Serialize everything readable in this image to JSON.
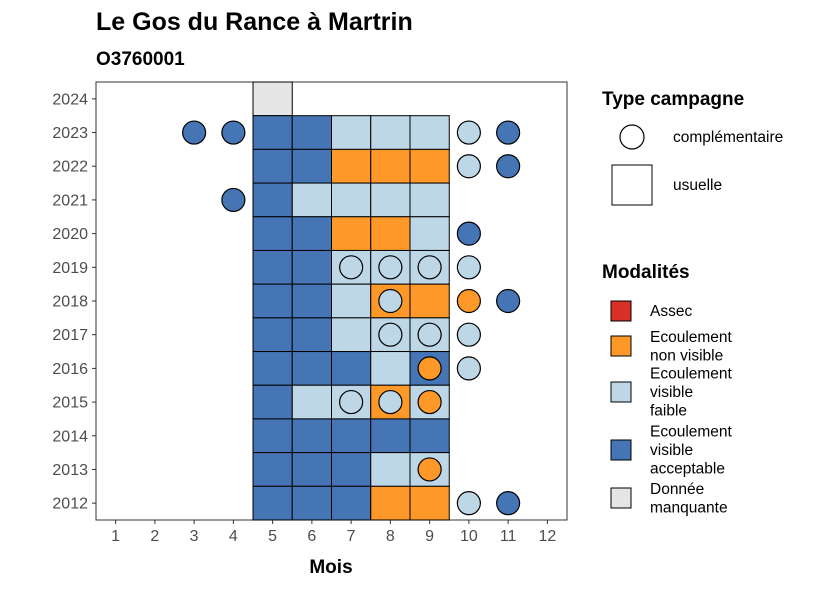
{
  "chart_data": {
    "type": "heatmap",
    "title": "Le Gos du Rance à Martrin",
    "subtitle": "O3760001",
    "xlabel": "Mois",
    "ylabel": "",
    "x_ticks": [
      "1",
      "2",
      "3",
      "4",
      "5",
      "6",
      "7",
      "8",
      "9",
      "10",
      "11",
      "12"
    ],
    "y_ticks": [
      "2012",
      "2013",
      "2014",
      "2015",
      "2016",
      "2017",
      "2018",
      "2019",
      "2020",
      "2021",
      "2022",
      "2023",
      "2024"
    ],
    "xlim": [
      0.5,
      12.5
    ],
    "ylim": [
      2011.5,
      2024.5
    ],
    "grid": false,
    "colors": {
      "Assec": "#d73027",
      "Ecoulement non visible": "#fe9929",
      "Ecoulement visible faible": "#bdd7e7",
      "Ecoulement visible acceptable": "#4575b4",
      "Donnée manquante": "#e5e5e5"
    },
    "usuelle": [
      {
        "year": 2024,
        "month": 5,
        "modalite": "Donnée manquante"
      },
      {
        "year": 2023,
        "month": 5,
        "modalite": "Ecoulement visible acceptable"
      },
      {
        "year": 2023,
        "month": 6,
        "modalite": "Ecoulement visible acceptable"
      },
      {
        "year": 2023,
        "month": 7,
        "modalite": "Ecoulement visible faible"
      },
      {
        "year": 2023,
        "month": 8,
        "modalite": "Ecoulement visible faible"
      },
      {
        "year": 2023,
        "month": 9,
        "modalite": "Ecoulement visible faible"
      },
      {
        "year": 2022,
        "month": 5,
        "modalite": "Ecoulement visible acceptable"
      },
      {
        "year": 2022,
        "month": 6,
        "modalite": "Ecoulement visible acceptable"
      },
      {
        "year": 2022,
        "month": 7,
        "modalite": "Ecoulement non visible"
      },
      {
        "year": 2022,
        "month": 8,
        "modalite": "Ecoulement non visible"
      },
      {
        "year": 2022,
        "month": 9,
        "modalite": "Ecoulement non visible"
      },
      {
        "year": 2021,
        "month": 5,
        "modalite": "Ecoulement visible acceptable"
      },
      {
        "year": 2021,
        "month": 6,
        "modalite": "Ecoulement visible faible"
      },
      {
        "year": 2021,
        "month": 7,
        "modalite": "Ecoulement visible faible"
      },
      {
        "year": 2021,
        "month": 8,
        "modalite": "Ecoulement visible faible"
      },
      {
        "year": 2021,
        "month": 9,
        "modalite": "Ecoulement visible faible"
      },
      {
        "year": 2020,
        "month": 5,
        "modalite": "Ecoulement visible acceptable"
      },
      {
        "year": 2020,
        "month": 6,
        "modalite": "Ecoulement visible acceptable"
      },
      {
        "year": 2020,
        "month": 7,
        "modalite": "Ecoulement non visible"
      },
      {
        "year": 2020,
        "month": 8,
        "modalite": "Ecoulement non visible"
      },
      {
        "year": 2020,
        "month": 9,
        "modalite": "Ecoulement visible faible"
      },
      {
        "year": 2019,
        "month": 5,
        "modalite": "Ecoulement visible acceptable"
      },
      {
        "year": 2019,
        "month": 6,
        "modalite": "Ecoulement visible acceptable"
      },
      {
        "year": 2019,
        "month": 7,
        "modalite": "Ecoulement visible faible"
      },
      {
        "year": 2019,
        "month": 8,
        "modalite": "Ecoulement visible faible"
      },
      {
        "year": 2019,
        "month": 9,
        "modalite": "Ecoulement visible faible"
      },
      {
        "year": 2018,
        "month": 5,
        "modalite": "Ecoulement visible acceptable"
      },
      {
        "year": 2018,
        "month": 6,
        "modalite": "Ecoulement visible acceptable"
      },
      {
        "year": 2018,
        "month": 7,
        "modalite": "Ecoulement visible faible"
      },
      {
        "year": 2018,
        "month": 8,
        "modalite": "Ecoulement non visible"
      },
      {
        "year": 2018,
        "month": 9,
        "modalite": "Ecoulement non visible"
      },
      {
        "year": 2017,
        "month": 5,
        "modalite": "Ecoulement visible acceptable"
      },
      {
        "year": 2017,
        "month": 6,
        "modalite": "Ecoulement visible acceptable"
      },
      {
        "year": 2017,
        "month": 7,
        "modalite": "Ecoulement visible faible"
      },
      {
        "year": 2017,
        "month": 8,
        "modalite": "Ecoulement visible faible"
      },
      {
        "year": 2017,
        "month": 9,
        "modalite": "Ecoulement visible faible"
      },
      {
        "year": 2016,
        "month": 5,
        "modalite": "Ecoulement visible acceptable"
      },
      {
        "year": 2016,
        "month": 6,
        "modalite": "Ecoulement visible acceptable"
      },
      {
        "year": 2016,
        "month": 7,
        "modalite": "Ecoulement visible acceptable"
      },
      {
        "year": 2016,
        "month": 8,
        "modalite": "Ecoulement visible faible"
      },
      {
        "year": 2016,
        "month": 9,
        "modalite": "Ecoulement visible acceptable"
      },
      {
        "year": 2015,
        "month": 5,
        "modalite": "Ecoulement visible acceptable"
      },
      {
        "year": 2015,
        "month": 6,
        "modalite": "Ecoulement visible faible"
      },
      {
        "year": 2015,
        "month": 7,
        "modalite": "Ecoulement visible faible"
      },
      {
        "year": 2015,
        "month": 8,
        "modalite": "Ecoulement non visible"
      },
      {
        "year": 2015,
        "month": 9,
        "modalite": "Ecoulement visible faible"
      },
      {
        "year": 2014,
        "month": 5,
        "modalite": "Ecoulement visible acceptable"
      },
      {
        "year": 2014,
        "month": 6,
        "modalite": "Ecoulement visible acceptable"
      },
      {
        "year": 2014,
        "month": 7,
        "modalite": "Ecoulement visible acceptable"
      },
      {
        "year": 2014,
        "month": 8,
        "modalite": "Ecoulement visible acceptable"
      },
      {
        "year": 2014,
        "month": 9,
        "modalite": "Ecoulement visible acceptable"
      },
      {
        "year": 2013,
        "month": 5,
        "modalite": "Ecoulement visible acceptable"
      },
      {
        "year": 2013,
        "month": 6,
        "modalite": "Ecoulement visible acceptable"
      },
      {
        "year": 2013,
        "month": 7,
        "modalite": "Ecoulement visible acceptable"
      },
      {
        "year": 2013,
        "month": 8,
        "modalite": "Ecoulement visible faible"
      },
      {
        "year": 2013,
        "month": 9,
        "modalite": "Ecoulement visible faible"
      },
      {
        "year": 2012,
        "month": 5,
        "modalite": "Ecoulement visible acceptable"
      },
      {
        "year": 2012,
        "month": 6,
        "modalite": "Ecoulement visible acceptable"
      },
      {
        "year": 2012,
        "month": 7,
        "modalite": "Ecoulement visible acceptable"
      },
      {
        "year": 2012,
        "month": 8,
        "modalite": "Ecoulement non visible"
      },
      {
        "year": 2012,
        "month": 9,
        "modalite": "Ecoulement non visible"
      }
    ],
    "complementaire": [
      {
        "year": 2023,
        "month": 3,
        "modalite": "Ecoulement visible acceptable"
      },
      {
        "year": 2023,
        "month": 4,
        "modalite": "Ecoulement visible acceptable"
      },
      {
        "year": 2023,
        "month": 10,
        "modalite": "Ecoulement visible faible"
      },
      {
        "year": 2023,
        "month": 11,
        "modalite": "Ecoulement visible acceptable"
      },
      {
        "year": 2022,
        "month": 10,
        "modalite": "Ecoulement visible faible"
      },
      {
        "year": 2022,
        "month": 11,
        "modalite": "Ecoulement visible acceptable"
      },
      {
        "year": 2021,
        "month": 4,
        "modalite": "Ecoulement visible acceptable"
      },
      {
        "year": 2020,
        "month": 10,
        "modalite": "Ecoulement visible acceptable"
      },
      {
        "year": 2019,
        "month": 7,
        "modalite": "Ecoulement visible faible"
      },
      {
        "year": 2019,
        "month": 8,
        "modalite": "Ecoulement visible faible"
      },
      {
        "year": 2019,
        "month": 9,
        "modalite": "Ecoulement visible faible"
      },
      {
        "year": 2019,
        "month": 10,
        "modalite": "Ecoulement visible faible"
      },
      {
        "year": 2018,
        "month": 8,
        "modalite": "Ecoulement visible faible"
      },
      {
        "year": 2018,
        "month": 10,
        "modalite": "Ecoulement non visible"
      },
      {
        "year": 2018,
        "month": 11,
        "modalite": "Ecoulement visible acceptable"
      },
      {
        "year": 2017,
        "month": 8,
        "modalite": "Ecoulement visible faible"
      },
      {
        "year": 2017,
        "month": 9,
        "modalite": "Ecoulement visible faible"
      },
      {
        "year": 2017,
        "month": 10,
        "modalite": "Ecoulement visible faible"
      },
      {
        "year": 2016,
        "month": 9,
        "modalite": "Ecoulement non visible"
      },
      {
        "year": 2016,
        "month": 10,
        "modalite": "Ecoulement visible faible"
      },
      {
        "year": 2015,
        "month": 7,
        "modalite": "Ecoulement visible faible"
      },
      {
        "year": 2015,
        "month": 8,
        "modalite": "Ecoulement visible faible"
      },
      {
        "year": 2015,
        "month": 9,
        "modalite": "Ecoulement non visible"
      },
      {
        "year": 2013,
        "month": 9,
        "modalite": "Ecoulement non visible"
      },
      {
        "year": 2012,
        "month": 10,
        "modalite": "Ecoulement visible faible"
      },
      {
        "year": 2012,
        "month": 11,
        "modalite": "Ecoulement visible acceptable"
      }
    ],
    "legend_position": "right",
    "legend": {
      "type_title": "Type campagne",
      "type_items": [
        {
          "label": "complémentaire",
          "shape": "circle"
        },
        {
          "label": "usuelle",
          "shape": "square"
        }
      ],
      "modalite_title": "Modalités",
      "modalite_items": [
        {
          "key": "Assec",
          "lines": [
            "Assec"
          ]
        },
        {
          "key": "Ecoulement non visible",
          "lines": [
            "Ecoulement",
            "non visible"
          ]
        },
        {
          "key": "Ecoulement visible faible",
          "lines": [
            "Ecoulement",
            "visible",
            "faible"
          ]
        },
        {
          "key": "Ecoulement visible acceptable",
          "lines": [
            "Ecoulement",
            "visible",
            "acceptable"
          ]
        },
        {
          "key": "Donnée manquante",
          "lines": [
            "Donnée",
            "manquante"
          ]
        }
      ]
    }
  }
}
